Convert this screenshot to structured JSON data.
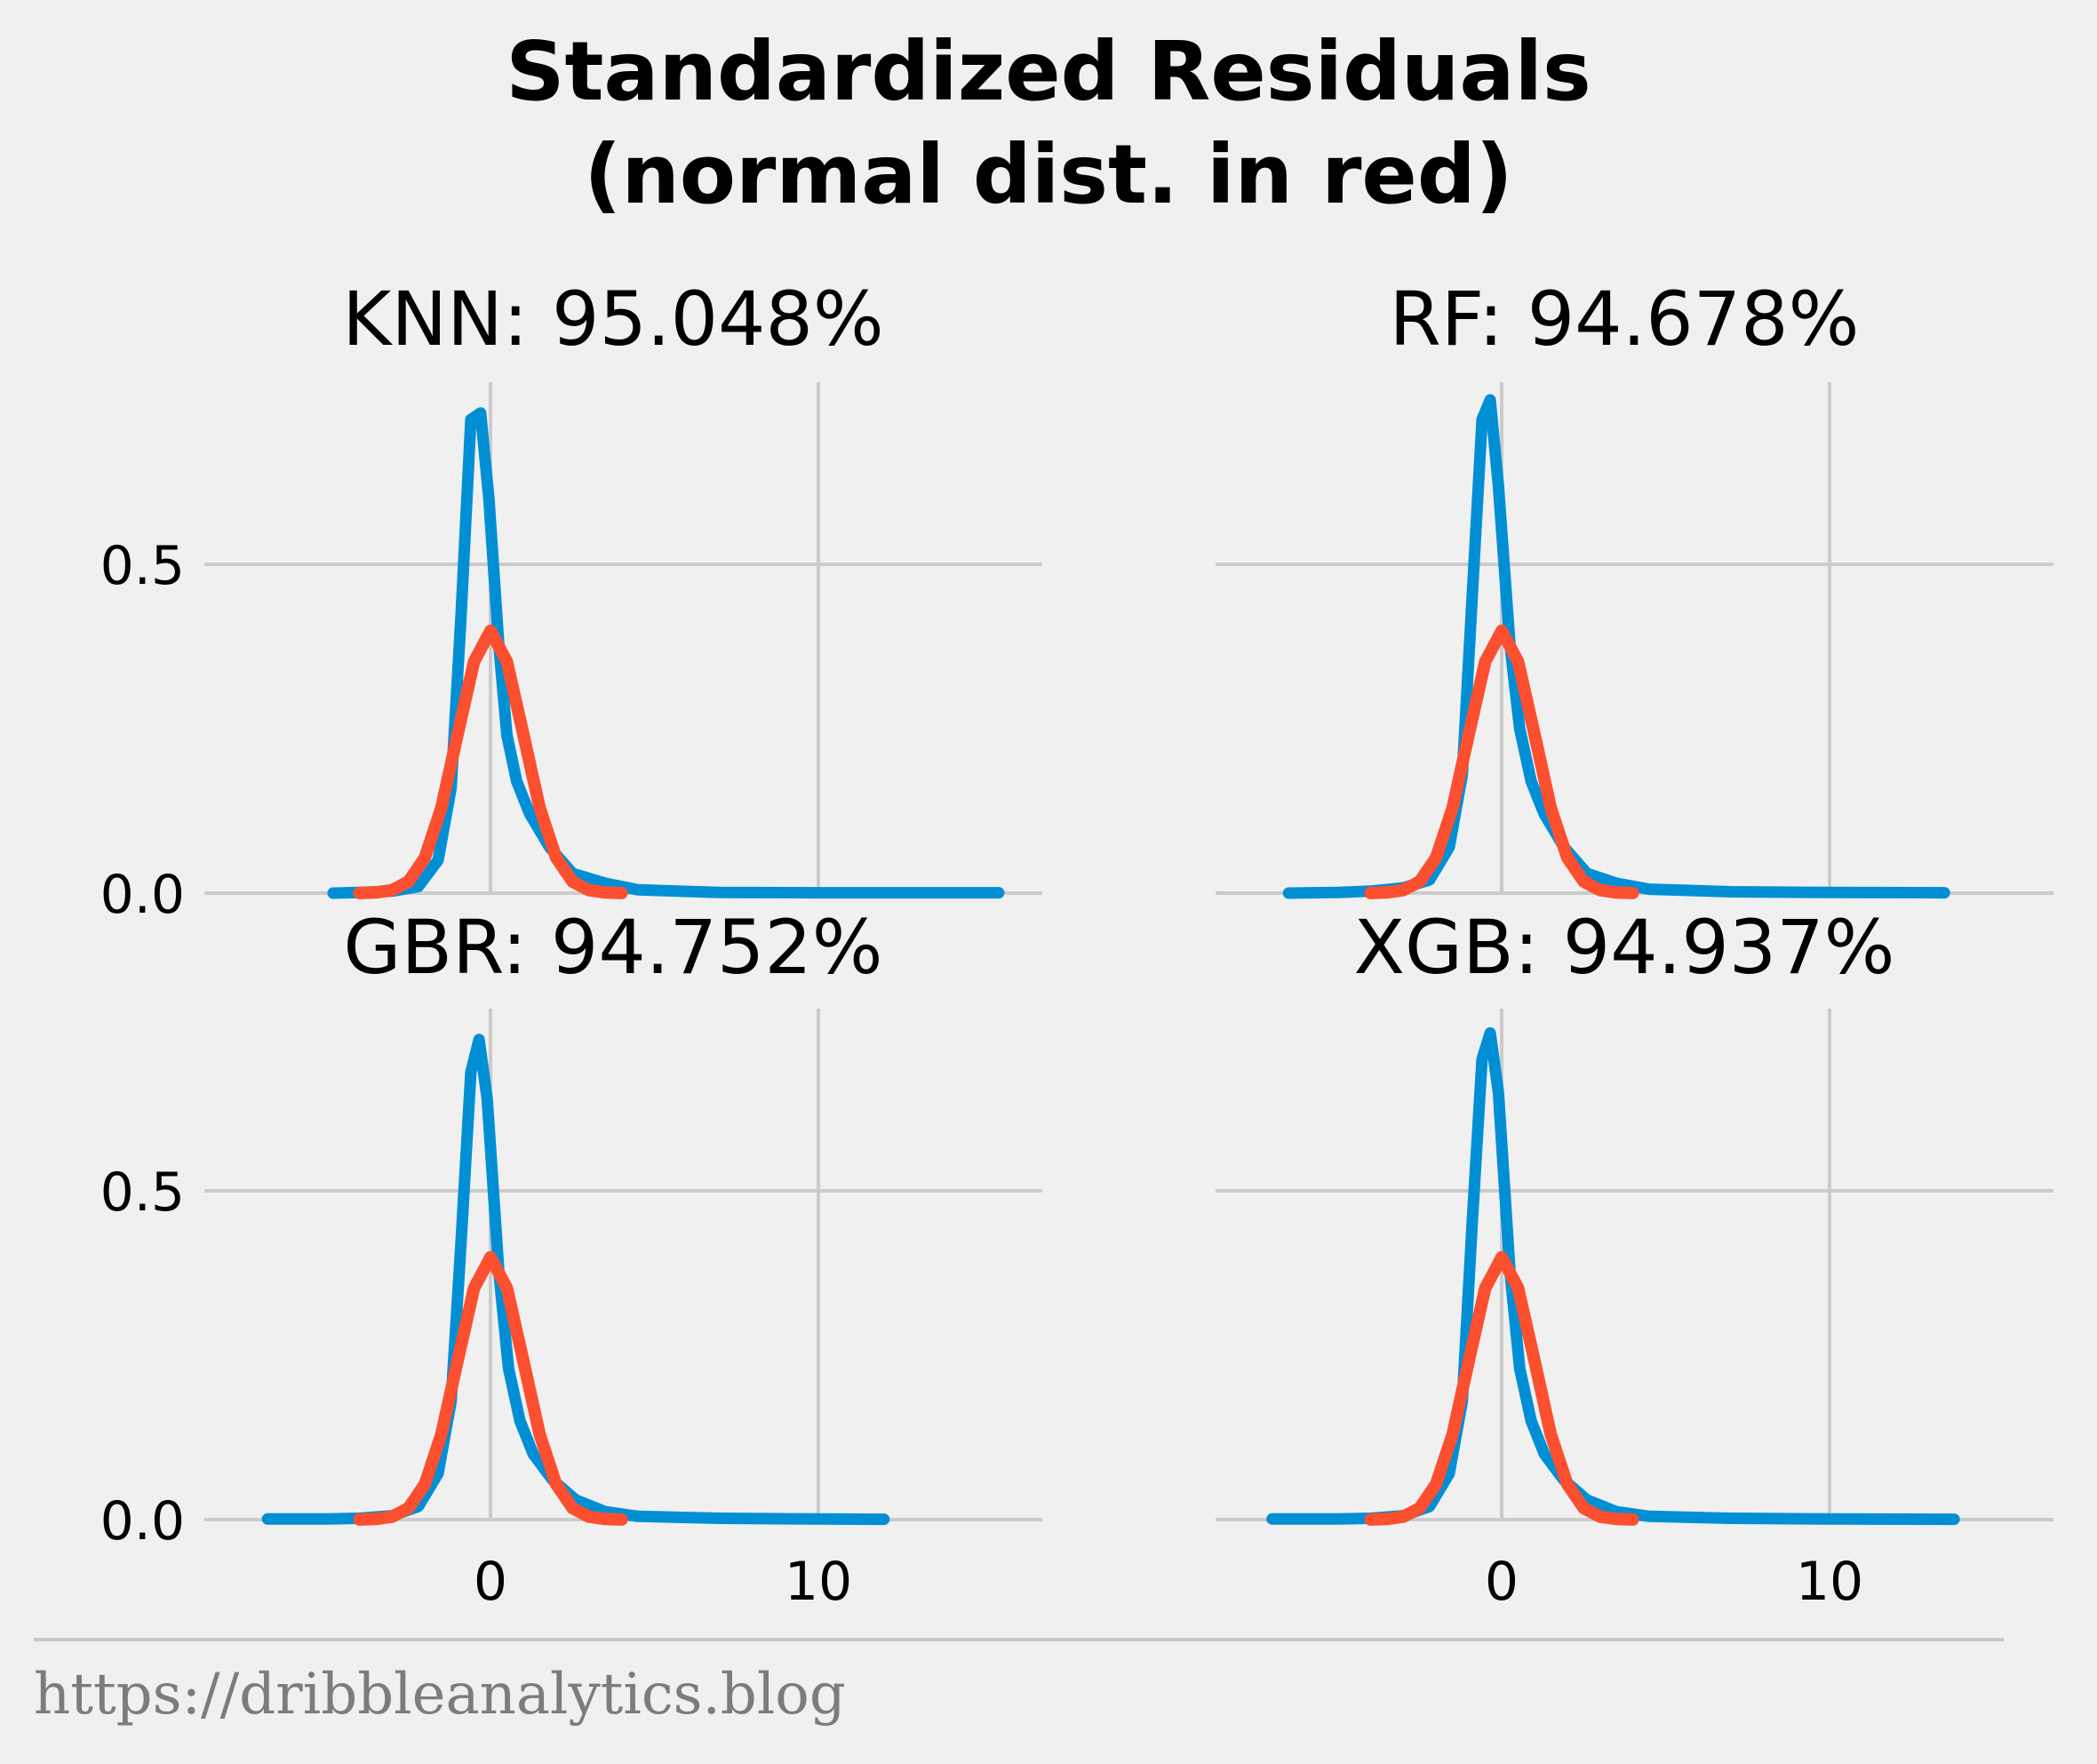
{
  "title": "Standardized Residuals",
  "subtitle": "(normal dist. in red)",
  "footer": "https://dribbleanalytics.blog",
  "colors": {
    "residuals": "#008fd5",
    "normal": "#fc4f30",
    "background": "#f0f0f0",
    "grid": "#cbcbcb"
  },
  "chart_data": [
    {
      "type": "line",
      "panel": "top-left",
      "title": "KNN: 95.048%",
      "xlim": [
        -5,
        16
      ],
      "ylim": [
        0,
        0.75
      ],
      "xticks": [
        0,
        10
      ],
      "xtick_labels": [],
      "yticks": [
        0.0,
        0.5
      ],
      "ytick_labels": [
        "0.0",
        "0.5"
      ],
      "series": [
        {
          "values": [
            [
              -4.8,
              0.0
            ],
            [
              -4,
              0.001
            ],
            [
              -3,
              0.003
            ],
            [
              -2.2,
              0.01
            ],
            [
              -1.6,
              0.05
            ],
            [
              -1.2,
              0.16
            ],
            [
              -0.9,
              0.42
            ],
            [
              -0.6,
              0.72
            ],
            [
              -0.3,
              0.73
            ],
            [
              -0.05,
              0.6
            ],
            [
              0.25,
              0.38
            ],
            [
              0.5,
              0.24
            ],
            [
              0.8,
              0.17
            ],
            [
              1.2,
              0.12
            ],
            [
              1.8,
              0.07
            ],
            [
              2.5,
              0.03
            ],
            [
              3.5,
              0.015
            ],
            [
              4.5,
              0.005
            ],
            [
              7,
              0.001
            ],
            [
              10,
              0.0005
            ],
            [
              13,
              0.0005
            ],
            [
              15.5,
              0.0005
            ]
          ]
        },
        {
          "values": [
            [
              -4,
              0.0001
            ],
            [
              -3.5,
              0.0009
            ],
            [
              -3,
              0.0044
            ],
            [
              -2.5,
              0.0175
            ],
            [
              -2,
              0.054
            ],
            [
              -1.5,
              0.1295
            ],
            [
              -1,
              0.242
            ],
            [
              -0.5,
              0.352
            ],
            [
              0,
              0.3989
            ],
            [
              0.5,
              0.352
            ],
            [
              1,
              0.242
            ],
            [
              1.5,
              0.1295
            ],
            [
              2,
              0.054
            ],
            [
              2.5,
              0.0175
            ],
            [
              3,
              0.0044
            ],
            [
              3.5,
              0.0009
            ],
            [
              4,
              0.0001
            ]
          ]
        }
      ]
    },
    {
      "type": "line",
      "panel": "top-right",
      "title": "RF: 94.678%",
      "xlim": [
        -7,
        14
      ],
      "ylim": [
        0,
        0.75
      ],
      "xticks": [
        0,
        10
      ],
      "xtick_labels": [],
      "yticks": [
        0.0,
        0.5
      ],
      "ytick_labels": [],
      "series": [
        {
          "values": [
            [
              -6.5,
              0.0
            ],
            [
              -5,
              0.001
            ],
            [
              -4,
              0.003
            ],
            [
              -3,
              0.008
            ],
            [
              -2.2,
              0.02
            ],
            [
              -1.6,
              0.07
            ],
            [
              -1.2,
              0.18
            ],
            [
              -0.9,
              0.45
            ],
            [
              -0.6,
              0.72
            ],
            [
              -0.35,
              0.75
            ],
            [
              -0.1,
              0.62
            ],
            [
              0.25,
              0.38
            ],
            [
              0.55,
              0.25
            ],
            [
              0.9,
              0.17
            ],
            [
              1.3,
              0.12
            ],
            [
              1.9,
              0.07
            ],
            [
              2.6,
              0.03
            ],
            [
              3.5,
              0.015
            ],
            [
              4.5,
              0.006
            ],
            [
              7,
              0.002
            ],
            [
              10,
              0.001
            ],
            [
              13.5,
              0.0005
            ]
          ]
        },
        {
          "values": [
            [
              -4,
              0.0001
            ],
            [
              -3.5,
              0.0009
            ],
            [
              -3,
              0.0044
            ],
            [
              -2.5,
              0.0175
            ],
            [
              -2,
              0.054
            ],
            [
              -1.5,
              0.1295
            ],
            [
              -1,
              0.242
            ],
            [
              -0.5,
              0.352
            ],
            [
              0,
              0.3989
            ],
            [
              0.5,
              0.352
            ],
            [
              1,
              0.242
            ],
            [
              1.5,
              0.1295
            ],
            [
              2,
              0.054
            ],
            [
              2.5,
              0.0175
            ],
            [
              3,
              0.0044
            ],
            [
              3.5,
              0.0009
            ],
            [
              4,
              0.0001
            ]
          ]
        }
      ]
    },
    {
      "type": "line",
      "panel": "bottom-left",
      "title": "GBR: 94.752%",
      "xlim": [
        -7,
        16
      ],
      "ylim": [
        0,
        0.75
      ],
      "xticks": [
        0,
        10
      ],
      "xtick_labels": [
        "0",
        "10"
      ],
      "yticks": [
        0.0,
        0.5
      ],
      "ytick_labels": [
        "0.0",
        "0.5"
      ],
      "series": [
        {
          "values": [
            [
              -6.8,
              0.001
            ],
            [
              -5,
              0.001
            ],
            [
              -4,
              0.002
            ],
            [
              -3,
              0.006
            ],
            [
              -2.2,
              0.02
            ],
            [
              -1.6,
              0.07
            ],
            [
              -1.2,
              0.18
            ],
            [
              -0.9,
              0.42
            ],
            [
              -0.6,
              0.68
            ],
            [
              -0.35,
              0.73
            ],
            [
              -0.1,
              0.64
            ],
            [
              0.25,
              0.38
            ],
            [
              0.55,
              0.23
            ],
            [
              0.9,
              0.15
            ],
            [
              1.3,
              0.1
            ],
            [
              1.9,
              0.06
            ],
            [
              2.6,
              0.03
            ],
            [
              3.5,
              0.012
            ],
            [
              4.5,
              0.005
            ],
            [
              7,
              0.002
            ],
            [
              10,
              0.001
            ],
            [
              12,
              0.0005
            ]
          ]
        },
        {
          "values": [
            [
              -4,
              0.0001
            ],
            [
              -3.5,
              0.0009
            ],
            [
              -3,
              0.0044
            ],
            [
              -2.5,
              0.0175
            ],
            [
              -2,
              0.054
            ],
            [
              -1.5,
              0.1295
            ],
            [
              -1,
              0.242
            ],
            [
              -0.5,
              0.352
            ],
            [
              0,
              0.3989
            ],
            [
              0.5,
              0.352
            ],
            [
              1,
              0.242
            ],
            [
              1.5,
              0.1295
            ],
            [
              2,
              0.054
            ],
            [
              2.5,
              0.0175
            ],
            [
              3,
              0.0044
            ],
            [
              3.5,
              0.0009
            ],
            [
              4,
              0.0001
            ]
          ]
        }
      ]
    },
    {
      "type": "line",
      "panel": "bottom-right",
      "title": "XGB: 94.937%",
      "xlim": [
        -7,
        14
      ],
      "ylim": [
        0,
        0.75
      ],
      "xticks": [
        0,
        10
      ],
      "xtick_labels": [
        "0",
        "10"
      ],
      "yticks": [
        0.0,
        0.5
      ],
      "ytick_labels": [],
      "series": [
        {
          "values": [
            [
              -7,
              0.001
            ],
            [
              -5,
              0.001
            ],
            [
              -4,
              0.002
            ],
            [
              -3,
              0.006
            ],
            [
              -2.2,
              0.02
            ],
            [
              -1.6,
              0.07
            ],
            [
              -1.2,
              0.18
            ],
            [
              -0.9,
              0.45
            ],
            [
              -0.6,
              0.7
            ],
            [
              -0.35,
              0.74
            ],
            [
              -0.1,
              0.65
            ],
            [
              0.25,
              0.38
            ],
            [
              0.55,
              0.23
            ],
            [
              0.9,
              0.15
            ],
            [
              1.3,
              0.1
            ],
            [
              1.9,
              0.06
            ],
            [
              2.6,
              0.03
            ],
            [
              3.5,
              0.012
            ],
            [
              4.5,
              0.005
            ],
            [
              7,
              0.002
            ],
            [
              10,
              0.001
            ],
            [
              13.8,
              0.0005
            ]
          ]
        },
        {
          "values": [
            [
              -4,
              0.0001
            ],
            [
              -3.5,
              0.0009
            ],
            [
              -3,
              0.0044
            ],
            [
              -2.5,
              0.0175
            ],
            [
              -2,
              0.054
            ],
            [
              -1.5,
              0.1295
            ],
            [
              -1,
              0.242
            ],
            [
              -0.5,
              0.352
            ],
            [
              0,
              0.3989
            ],
            [
              0.5,
              0.352
            ],
            [
              1,
              0.242
            ],
            [
              1.5,
              0.1295
            ],
            [
              2,
              0.054
            ],
            [
              2.5,
              0.0175
            ],
            [
              3,
              0.0044
            ],
            [
              3.5,
              0.0009
            ],
            [
              4,
              0.0001
            ]
          ]
        }
      ]
    }
  ]
}
